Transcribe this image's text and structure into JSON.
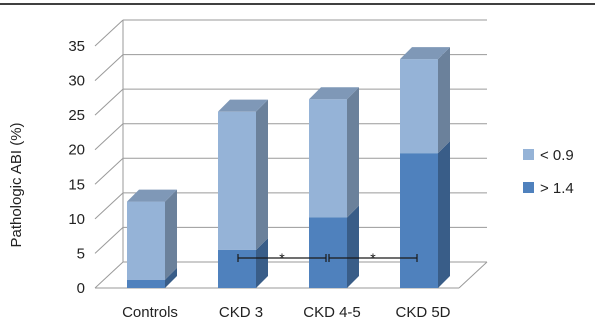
{
  "chart_data": {
    "type": "bar",
    "stacked": true,
    "three_d": true,
    "categories": [
      "Controls",
      "CKD 3",
      "CKD 4-5",
      "CKD 5D"
    ],
    "series": [
      {
        "name": "> 1.4",
        "values": [
          1.2,
          5.5,
          10.2,
          19.5
        ],
        "color": "#4F81BD"
      },
      {
        "name": "< 0.9",
        "values": [
          11.3,
          20.0,
          17.1,
          13.6
        ],
        "color": "#95B3D7"
      }
    ],
    "ylabel": "Pathologic ABI (%)",
    "xlabel": "",
    "ylim": [
      0,
      35
    ],
    "yticks": [
      "0",
      "5",
      "10",
      "15",
      "20",
      "25",
      "30",
      "35"
    ],
    "grid": true,
    "legend_position": "right",
    "legend_order": [
      "< 0.9",
      "> 1.4"
    ],
    "annotations": [
      {
        "from": "CKD 3",
        "to": "CKD 4-5",
        "symbol": "*"
      },
      {
        "from": "CKD 4-5",
        "to": "CKD 5D",
        "symbol": "*"
      }
    ]
  }
}
